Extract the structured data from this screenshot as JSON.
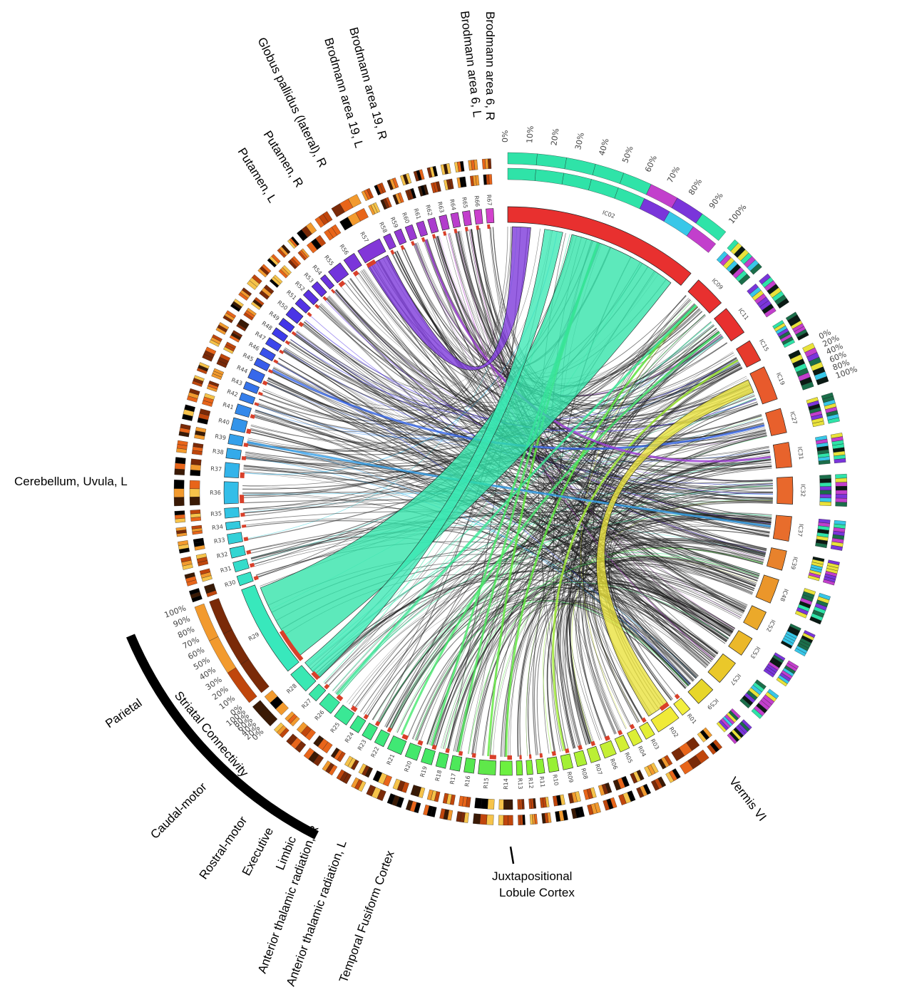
{
  "ic_labels": [
    "IC02",
    "IC09",
    "IC11",
    "IC15",
    "IC19",
    "IC27",
    "IC31",
    "IC32",
    "IC37",
    "IC39",
    "IC48",
    "IC52",
    "IC53",
    "IC57",
    "IC59"
  ],
  "ic_colors": [
    "#e8302f",
    "#e8302f",
    "#e8302f",
    "#e63a2c",
    "#e85a2c",
    "#e8602c",
    "#e8632c",
    "#e8682c",
    "#e86d2c",
    "#e8822c",
    "#eb962a",
    "#eba92a",
    "#ebb82a",
    "#eac82a",
    "#e7d62a"
  ],
  "region_labels": [
    "R01",
    "R02",
    "R03",
    "R04",
    "R05",
    "R06",
    "R07",
    "R08",
    "R09",
    "R10",
    "R11",
    "R12",
    "R13",
    "R14",
    "R15",
    "R16",
    "R17",
    "R18",
    "R19",
    "R20",
    "R21",
    "R22",
    "R23",
    "R24",
    "R25",
    "R26",
    "R27",
    "R28",
    "R29",
    "R30",
    "R31",
    "R32",
    "R33",
    "R34",
    "R35",
    "R36",
    "R37",
    "R38",
    "R39",
    "R40",
    "R41",
    "R42",
    "R43",
    "R44",
    "R45",
    "R46",
    "R47",
    "R48",
    "R49",
    "R50",
    "R51",
    "R52",
    "R53",
    "R54",
    "R55",
    "R56",
    "R57",
    "R58",
    "R59",
    "R60",
    "R61",
    "R62",
    "R63",
    "R64",
    "R65",
    "R66",
    "R67"
  ],
  "region_colors": [
    "#f2ee3e",
    "#f0ea38",
    "#e3ef35",
    "#dcef35",
    "#d3ef35",
    "#c5ef35",
    "#bbef35",
    "#aef035",
    "#a3f035",
    "#98f035",
    "#8cf035",
    "#82f035",
    "#78f035",
    "#6cf040",
    "#5fe84a",
    "#55e850",
    "#4de85a",
    "#48e860",
    "#45e865",
    "#44e86c",
    "#40e874",
    "#3ee87c",
    "#3ce884",
    "#3be88c",
    "#3ae895",
    "#3ae8a0",
    "#3ae8a8",
    "#3ae8b3",
    "#38e8bc",
    "#36e2c6",
    "#34dccb",
    "#33d6d2",
    "#33d0d8",
    "#33cade",
    "#33c4e4",
    "#33bee8",
    "#33b4ea",
    "#33aaea",
    "#339fea",
    "#3394ea",
    "#3489ea",
    "#357eea",
    "#3673ea",
    "#3768ea",
    "#385cea",
    "#3a51ea",
    "#3c46ea",
    "#3e3bea",
    "#4236e8",
    "#4a34e6",
    "#5232e4",
    "#5a31e2",
    "#6232e0",
    "#6a33de",
    "#7234dc",
    "#7a35da",
    "#8237d8",
    "#8a38d6",
    "#9239d4",
    "#9a3ad2",
    "#a23bd0",
    "#aa3cce",
    "#b23dcc",
    "#ba3ecc",
    "#c23fcc",
    "#ca40cc",
    "#d241cc"
  ],
  "outer_pct_ticks": [
    "0%",
    "10%",
    "20%",
    "30%",
    "40%",
    "50%",
    "60%",
    "70%",
    "80%",
    "90%",
    "100%"
  ],
  "left_pct_ticks": [
    "100%",
    "90%",
    "80%",
    "70%",
    "60%",
    "50%",
    "40%",
    "30%",
    "20%",
    "10%",
    "0%"
  ],
  "small_pct_ticks": [
    "0%",
    "20%",
    "40%",
    "60%",
    "80%",
    "100%"
  ],
  "mini_pct_ticks": [
    "100%",
    "80%",
    "60%",
    "40%",
    "20%",
    "0%"
  ],
  "annotations": {
    "brodmann6r": "Brodmann area 6, R",
    "brodmann6l": "Brodmann area 6, L",
    "brodmann19r": "Brodmann area 19, R",
    "brodmann19l": "Brodmann area 19, L",
    "globus": "Globus pallidus (lateral), R",
    "putamenr": "Putamen, R",
    "putamenl": "Putamen, L",
    "cerebellum": "Cerebellum, Uvula, L",
    "vermis": "Vermis VI",
    "juxta_line1": "Juxtapositional",
    "juxta_line2": "Lobule Cortex",
    "thalamic_r": "Anterior thalamic radiation, R",
    "thalamic_l": "Anterior thalamic radiation, L",
    "fusiform": "Temporal Fusiform Cortex",
    "striatal": "Striatal Connectivity",
    "parietal": "Parietal",
    "caudal": "Caudal-motor",
    "rostral": "Rostral-motor",
    "executive": "Executive",
    "limbic": "Limbic"
  }
}
